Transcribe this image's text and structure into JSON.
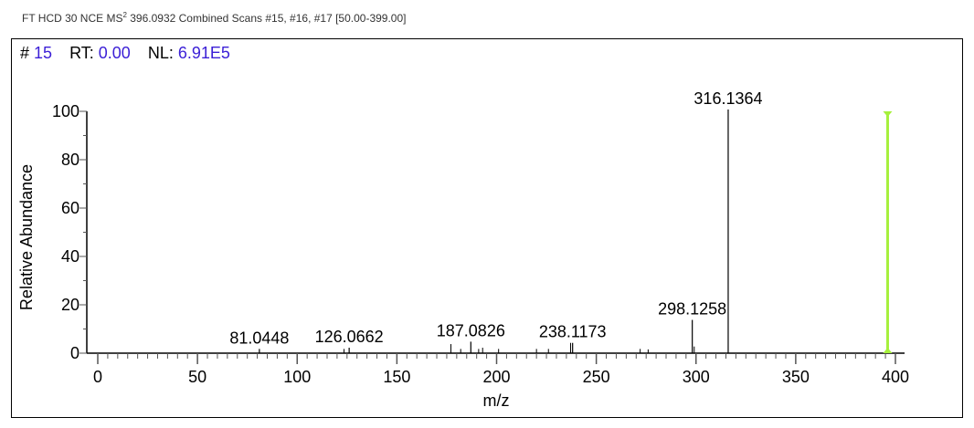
{
  "header": {
    "title_prefix": "FT HCD 30 NCE MS",
    "title_sup": "2",
    "title_suffix": " 396.0932 Combined Scans #15, #16, #17 [50.00-399.00]"
  },
  "scan_info": {
    "scan_label": "#",
    "scan_value": "15",
    "rt_label": "RT:",
    "rt_value": "0.00",
    "nl_label": "NL:",
    "nl_value": "6.91E5"
  },
  "chart_data": {
    "type": "bar",
    "subtype": "mass-spectrum-stick",
    "xlabel": "m/z",
    "ylabel": "Relative Abundance",
    "xlim": [
      0,
      400
    ],
    "ylim": [
      0,
      100
    ],
    "x_ticks": [
      "0",
      "50",
      "100",
      "150",
      "200",
      "250",
      "300",
      "350",
      "400"
    ],
    "y_ticks": [
      "0",
      "20",
      "40",
      "60",
      "80",
      "100"
    ],
    "grid": false,
    "labeled_peaks": [
      {
        "mz": 81.0448,
        "label": "81.0448",
        "intensity": 1
      },
      {
        "mz": 126.0662,
        "label": "126.0662",
        "intensity": 1.5
      },
      {
        "mz": 187.0826,
        "label": "187.0826",
        "intensity": 4
      },
      {
        "mz": 238.1173,
        "label": "238.1173",
        "intensity": 3.5
      },
      {
        "mz": 298.1258,
        "label": "298.1258",
        "intensity": 13
      },
      {
        "mz": 316.1364,
        "label": "316.1364",
        "intensity": 100
      }
    ],
    "minor_peaks": [
      {
        "mz": 123.5,
        "intensity": 1
      },
      {
        "mz": 177.1,
        "intensity": 3
      },
      {
        "mz": 182.0,
        "intensity": 1
      },
      {
        "mz": 191.0,
        "intensity": 1
      },
      {
        "mz": 193.0,
        "intensity": 1.5
      },
      {
        "mz": 201.0,
        "intensity": 1
      },
      {
        "mz": 220.0,
        "intensity": 1
      },
      {
        "mz": 226.0,
        "intensity": 1
      },
      {
        "mz": 237.1,
        "intensity": 3.5
      },
      {
        "mz": 272.0,
        "intensity": 1
      },
      {
        "mz": 276.0,
        "intensity": 0.8
      },
      {
        "mz": 299.1,
        "intensity": 2
      }
    ],
    "precursor_marker": {
      "mz": 396.0932,
      "color": "#a6f03c"
    },
    "peak_color": "#000000"
  }
}
